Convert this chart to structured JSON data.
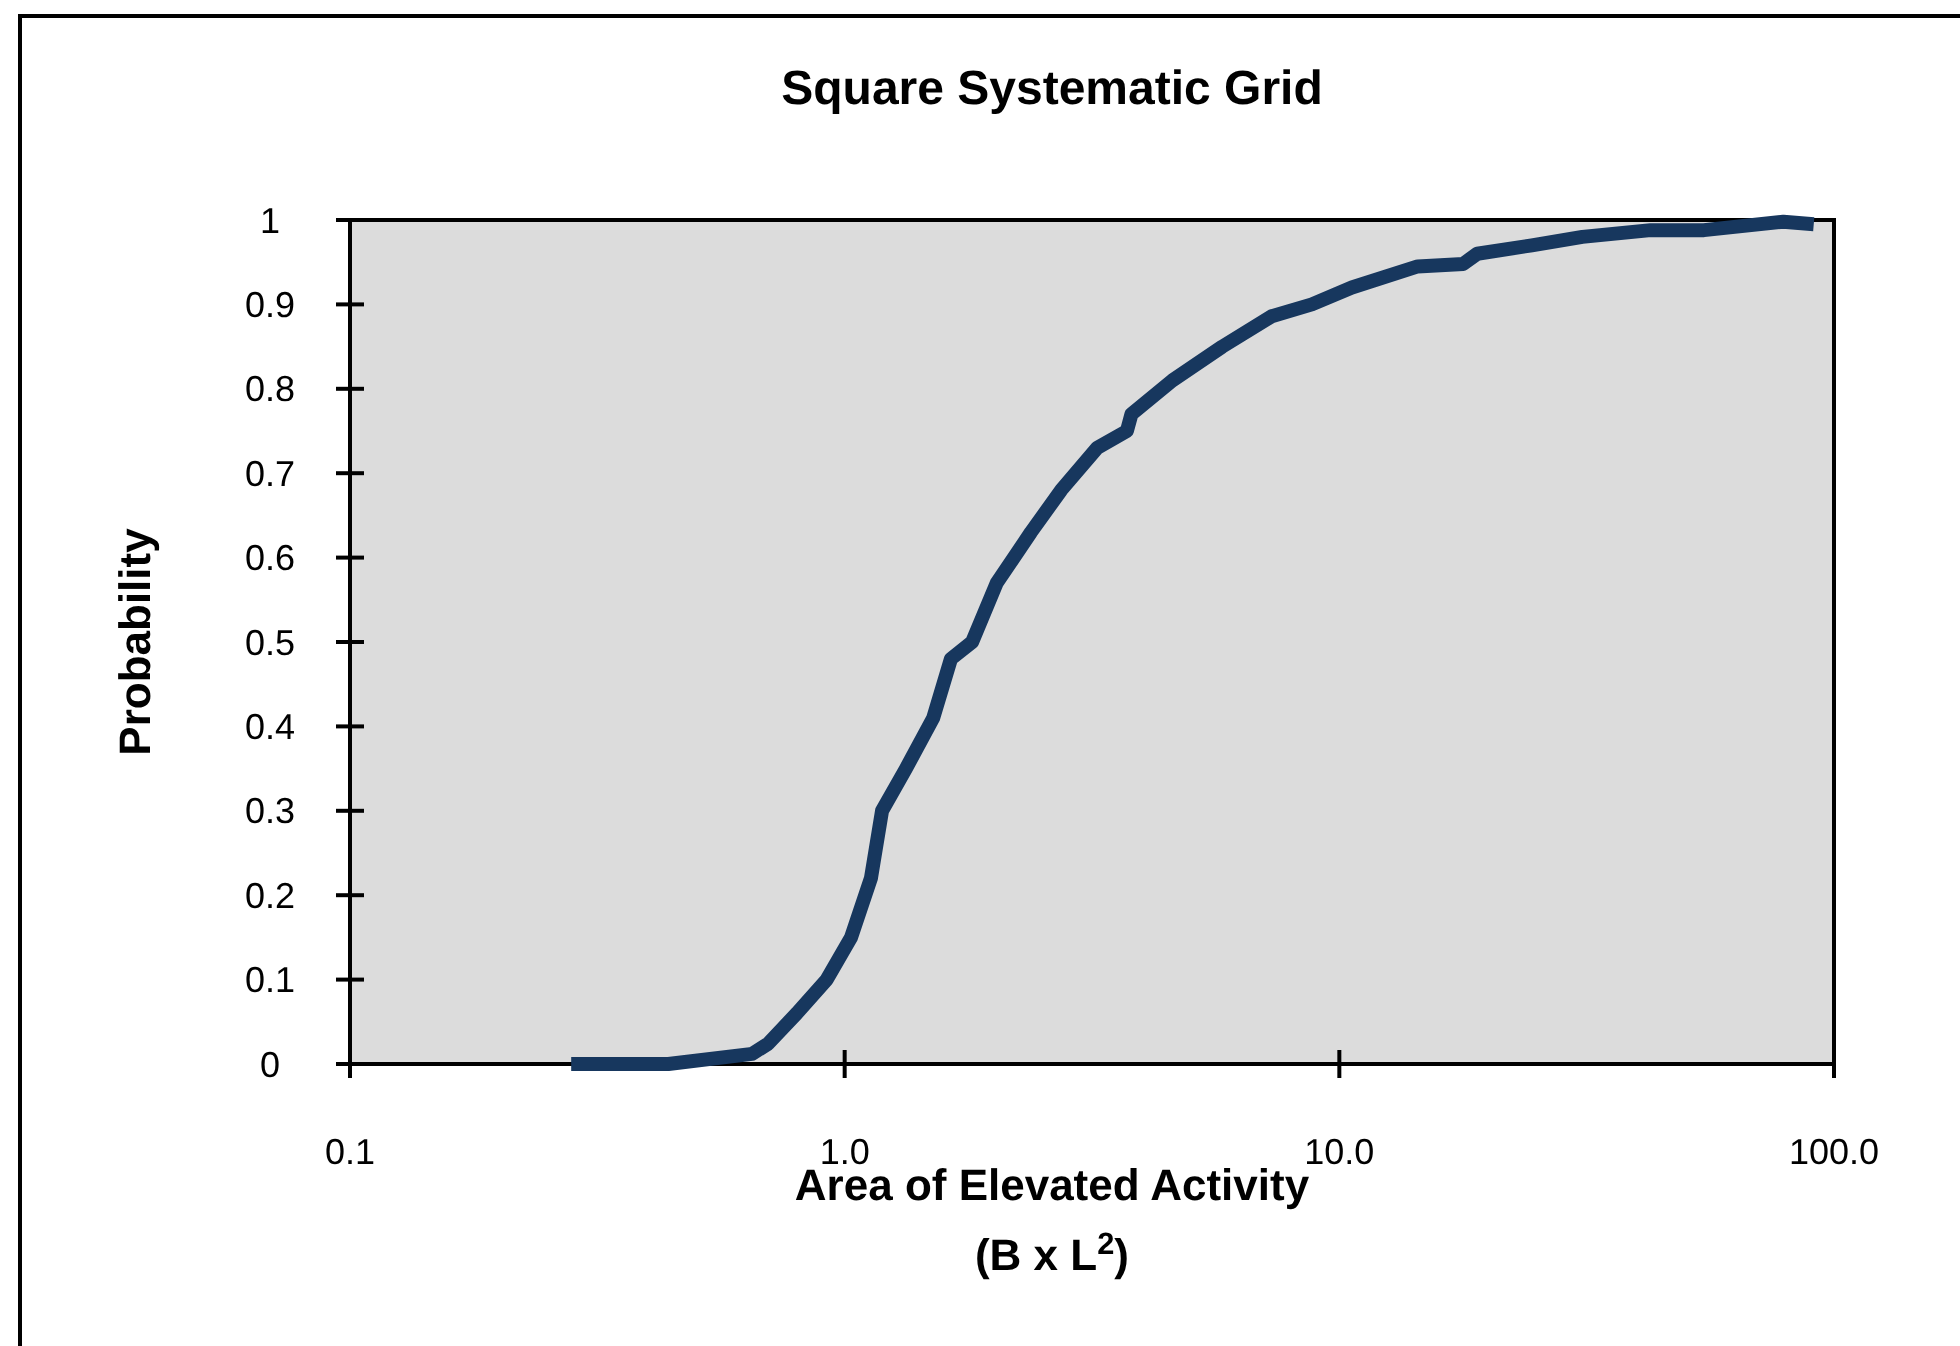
{
  "chart_data": {
    "type": "line",
    "title": "Square Systematic Grid",
    "xlabel": "Area of Elevated Activity\n(B x L$^{2}$)",
    "ylabel": "Probability",
    "log": "x",
    "grid": false,
    "marker": "none",
    "line_style": "solid",
    "xlim": [
      0.1,
      100
    ],
    "xticks": [
      {
        "value": 0.1,
        "label": "0.1"
      },
      {
        "value": 1,
        "label": "1.0"
      },
      {
        "value": 10,
        "label": "10.0"
      },
      {
        "value": 100,
        "label": "100.0"
      }
    ],
    "ylim": [
      0,
      1
    ],
    "yticks": [
      0,
      0.1,
      0.2,
      0.3,
      0.4,
      0.5,
      0.6,
      0.7,
      0.8,
      0.9,
      1
    ],
    "series": [
      {
        "color": "#17375e",
        "x": [
          0.28,
          0.44,
          0.65,
          0.7,
          0.8,
          0.92,
          1.03,
          1.13,
          1.19,
          1.33,
          1.51,
          1.64,
          1.81,
          2.03,
          2.38,
          2.74,
          3.24,
          3.72,
          3.8,
          4.6,
          5.8,
          7.3,
          8.8,
          10.6,
          14.4,
          17.8,
          19,
          24.5,
          31,
          42.6,
          54.6,
          79,
          91
        ],
        "values": [
          0,
          0,
          0.012,
          0.024,
          0.06,
          0.1,
          0.15,
          0.22,
          0.3,
          0.35,
          0.41,
          0.48,
          0.5,
          0.57,
          0.63,
          0.68,
          0.73,
          0.75,
          0.77,
          0.81,
          0.85,
          0.886,
          0.9,
          0.92,
          0.945,
          0.948,
          0.96,
          0.97,
          0.98,
          0.988,
          0.988,
          0.998,
          0.995
        ]
      }
    ]
  }
}
